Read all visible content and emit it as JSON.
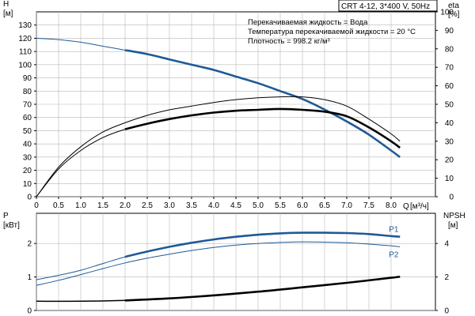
{
  "header": {
    "model": "CRT 4-12, 3*400 V, 50Hz",
    "info_lines": [
      "Перекачиваемая жидкость = Вода",
      "Температура перекачиваемой жидкости = 20 °C",
      "Плотность = 998.2 кг/м³"
    ]
  },
  "colors": {
    "axis": "#000000",
    "grid": "#b8b8b8",
    "curve_highlight": "#1f5a96",
    "curve_thin": "#000000"
  },
  "chart_data": [
    {
      "type": "line",
      "x_label": "Q",
      "x_unit": "[м³/ч]",
      "xlim": [
        0,
        9.0
      ],
      "x_ticks": [
        "0",
        "0.5",
        "1.0",
        "1.5",
        "2.0",
        "2.5",
        "3.0",
        "3.5",
        "4.0",
        "4.5",
        "5.0",
        "5.5",
        "6.0",
        "6.5",
        "7.0",
        "7.5",
        "8.0"
      ],
      "y_left_label": "H",
      "y_left_unit": "[м]",
      "y_left_lim": [
        0,
        140
      ],
      "y_left_ticks": [
        0,
        10,
        20,
        30,
        40,
        50,
        60,
        70,
        80,
        90,
        100,
        110,
        120,
        130
      ],
      "y_right_label": "eta",
      "y_right_unit": "[%]",
      "y_right_lim": [
        0,
        100
      ],
      "y_right_ticks": [
        0,
        10,
        20,
        30,
        40,
        50,
        60,
        70,
        80,
        90,
        100
      ],
      "grid": true,
      "series": [
        {
          "key": "H",
          "axis": "left",
          "x": [
            0,
            0.5,
            1.0,
            1.5,
            2.0,
            2.5,
            3.0,
            3.5,
            4.0,
            4.5,
            5.0,
            5.5,
            6.0,
            6.5,
            7.0,
            7.5,
            8.0,
            8.2
          ],
          "y": [
            120,
            119,
            117,
            114,
            111,
            108,
            104,
            100,
            96,
            91,
            86,
            80,
            74,
            66,
            57,
            47,
            35,
            30
          ],
          "duty_from": 2.0
        },
        {
          "key": "eta_1",
          "axis": "right",
          "x": [
            0,
            0.5,
            1.0,
            1.5,
            2.0,
            2.5,
            3.0,
            3.5,
            4.0,
            4.5,
            5.0,
            5.5,
            6.0,
            6.5,
            7.0,
            7.5,
            8.0,
            8.2
          ],
          "y": [
            0,
            16,
            27,
            35,
            40,
            44,
            47,
            49,
            51,
            52.5,
            53.5,
            54,
            54,
            52.5,
            49,
            42,
            34,
            30
          ],
          "duty_from": 99
        },
        {
          "key": "eta_2",
          "axis": "right",
          "x": [
            0,
            0.5,
            1.0,
            1.5,
            2.0,
            2.5,
            3.0,
            3.5,
            4.0,
            4.5,
            5.0,
            5.5,
            6.0,
            6.5,
            7.0,
            7.5,
            8.0,
            8.2
          ],
          "y": [
            0,
            15,
            25,
            32,
            36.5,
            39.5,
            42,
            44,
            45.5,
            46.5,
            47,
            47.5,
            47,
            46,
            43.5,
            37.5,
            30,
            26.5
          ],
          "duty_from": 2.0
        }
      ]
    },
    {
      "type": "line",
      "xlim": [
        0,
        9.0
      ],
      "y_left_label": "P",
      "y_left_unit": "[кВт]",
      "y_left_lim": [
        0,
        2.9
      ],
      "y_left_ticks": [
        0,
        1,
        2
      ],
      "y_right_label": "NPSH",
      "y_right_unit": "[м]",
      "y_right_lim": [
        0,
        5.8
      ],
      "y_right_ticks": [
        0,
        2,
        4
      ],
      "grid": true,
      "series": [
        {
          "key": "P1",
          "name": "P1",
          "axis": "left",
          "x": [
            0,
            0.5,
            1.0,
            1.5,
            2.0,
            2.5,
            3.0,
            3.5,
            4.0,
            4.5,
            5.0,
            5.5,
            6.0,
            6.5,
            7.0,
            7.5,
            8.0,
            8.2
          ],
          "y": [
            0.92,
            1.05,
            1.2,
            1.4,
            1.6,
            1.76,
            1.9,
            2.02,
            2.12,
            2.2,
            2.26,
            2.3,
            2.32,
            2.32,
            2.31,
            2.28,
            2.22,
            2.2
          ],
          "duty_from": 2.0
        },
        {
          "key": "P2",
          "name": "P2",
          "axis": "left",
          "x": [
            0,
            0.5,
            1.0,
            1.5,
            2.0,
            2.5,
            3.0,
            3.5,
            4.0,
            4.5,
            5.0,
            5.5,
            6.0,
            6.5,
            7.0,
            7.5,
            8.0,
            8.2
          ],
          "y": [
            0.75,
            0.9,
            1.07,
            1.25,
            1.42,
            1.56,
            1.68,
            1.79,
            1.88,
            1.95,
            2.0,
            2.03,
            2.05,
            2.04,
            2.02,
            1.98,
            1.93,
            1.9
          ],
          "duty_from": 99
        },
        {
          "key": "NPSH",
          "axis": "right",
          "x": [
            0,
            1.0,
            2.0,
            3.0,
            4.0,
            5.0,
            6.0,
            7.0,
            8.0,
            8.2
          ],
          "y": [
            0.55,
            0.55,
            0.6,
            0.72,
            0.9,
            1.12,
            1.38,
            1.65,
            1.95,
            2.02
          ],
          "duty_from": 2.0,
          "thick": true
        }
      ]
    }
  ]
}
